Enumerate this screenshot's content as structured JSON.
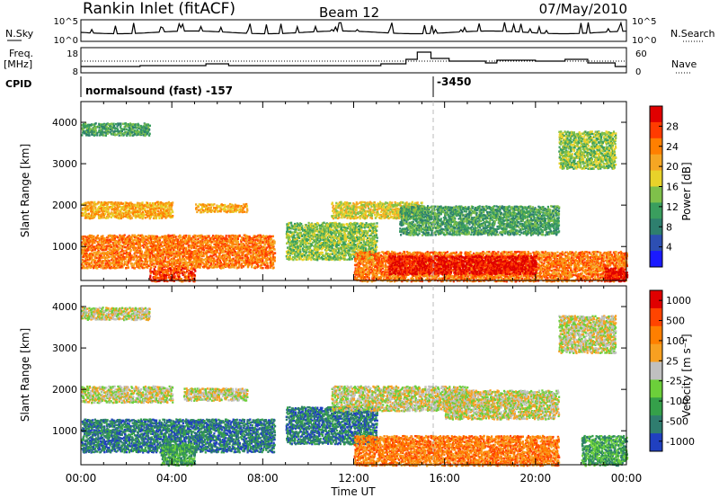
{
  "header": {
    "station": "Rankin Inlet (fitACF)",
    "beam": "Beam 12",
    "date": "07/May/2010"
  },
  "nsky_panel": {
    "left_label": "N.Sky",
    "left_ticks": [
      "10^5",
      "10^0"
    ],
    "right_ticks": [
      "10^5",
      "10^0"
    ],
    "right_label": "N.Search"
  },
  "freq_panel": {
    "left_label_1": "Freq.",
    "left_label_2": "[MHz]",
    "left_ticks": [
      "18",
      "8"
    ],
    "right_ticks": [
      "60",
      "0"
    ],
    "right_label": "Nave"
  },
  "cpid": {
    "label": "CPID",
    "mode_1": "normalsound (fast) -157",
    "mode_2": "-3450",
    "switch_hour": 15.5
  },
  "chart_data": [
    {
      "type": "heatmap",
      "title": "",
      "quantity": "Power",
      "ylabel": "Slant Range [km]",
      "xlabel": "",
      "xlim": [
        0,
        24
      ],
      "ylim": [
        180,
        4500
      ],
      "yticks": [
        "1000",
        "2000",
        "3000",
        "4000"
      ],
      "colorbar": {
        "label": "Power [dB]",
        "ticks": [
          "4",
          "8",
          "12",
          "16",
          "20",
          "24",
          "28"
        ],
        "colors": [
          "#1a1aff",
          "#2d4fb3",
          "#2e7f6e",
          "#3a9e5e",
          "#7fc04a",
          "#e8d22a",
          "#f5a623",
          "#ff7f00",
          "#ff3b00",
          "#e00000"
        ]
      },
      "scatter_bands": [
        {
          "x0": 0.0,
          "x1": 4.0,
          "y0": 1700,
          "y1": 2100,
          "level": 6
        },
        {
          "x0": 0.0,
          "x1": 8.5,
          "y0": 500,
          "y1": 1300,
          "level": 7
        },
        {
          "x0": 5.0,
          "x1": 7.3,
          "y0": 1850,
          "y1": 2050,
          "level": 6
        },
        {
          "x0": 3.0,
          "x1": 5.0,
          "y0": 180,
          "y1": 500,
          "level": 8
        },
        {
          "x0": 9.0,
          "x1": 13.0,
          "y0": 700,
          "y1": 1600,
          "level": 4
        },
        {
          "x0": 12.0,
          "x1": 24.0,
          "y0": 180,
          "y1": 900,
          "level": 7
        },
        {
          "x0": 13.5,
          "x1": 20.0,
          "y0": 350,
          "y1": 800,
          "level": 9
        },
        {
          "x0": 11.0,
          "x1": 15.0,
          "y0": 1700,
          "y1": 2100,
          "level": 5
        },
        {
          "x0": 14.0,
          "x1": 21.0,
          "y0": 1300,
          "y1": 2000,
          "level": 3
        },
        {
          "x0": 0.0,
          "x1": 3.0,
          "y0": 3700,
          "y1": 4000,
          "level": 3
        },
        {
          "x0": 21.0,
          "x1": 23.5,
          "y0": 2900,
          "y1": 3800,
          "level": 4
        },
        {
          "x0": 23.0,
          "x1": 24.0,
          "y0": 180,
          "y1": 500,
          "level": 9
        }
      ]
    },
    {
      "type": "heatmap",
      "title": "",
      "quantity": "Velocity",
      "ylabel": "Slant Range [km]",
      "xlabel": "Time UT",
      "xlim": [
        0,
        24
      ],
      "ylim": [
        180,
        4500
      ],
      "yticks": [
        "1000",
        "2000",
        "3000",
        "4000"
      ],
      "xticks": [
        "00:00",
        "04:00",
        "08:00",
        "12:00",
        "16:00",
        "20:00",
        "00:00"
      ],
      "colorbar": {
        "label": "Velocity [m s⁻¹]",
        "ticks": [
          "1000",
          "500",
          "100",
          "25",
          "-25",
          "-100",
          "-500",
          "-1000"
        ],
        "colors": [
          "#2040c0",
          "#2f7d6f",
          "#35a04a",
          "#6ccf3a",
          "#c0c0c0",
          "#f7a021",
          "#ff7f00",
          "#ff4400",
          "#e00000"
        ]
      },
      "scatter_bands": [
        {
          "x0": 0.0,
          "x1": 4.0,
          "y0": 1700,
          "y1": 2100,
          "level": 4
        },
        {
          "x0": 0.0,
          "x1": 8.5,
          "y0": 500,
          "y1": 1300,
          "level": 1
        },
        {
          "x0": 4.5,
          "x1": 7.3,
          "y0": 1750,
          "y1": 2050,
          "level": 4
        },
        {
          "x0": 9.0,
          "x1": 13.0,
          "y0": 700,
          "y1": 1600,
          "level": 1
        },
        {
          "x0": 12.0,
          "x1": 21.0,
          "y0": 180,
          "y1": 900,
          "level": 6
        },
        {
          "x0": 11.0,
          "x1": 17.0,
          "y0": 1500,
          "y1": 2100,
          "level": 4
        },
        {
          "x0": 16.0,
          "x1": 21.0,
          "y0": 1300,
          "y1": 2000,
          "level": 4
        },
        {
          "x0": 0.0,
          "x1": 3.0,
          "y0": 3700,
          "y1": 4000,
          "level": 4
        },
        {
          "x0": 21.0,
          "x1": 23.5,
          "y0": 2900,
          "y1": 3800,
          "level": 4
        },
        {
          "x0": 22.0,
          "x1": 24.0,
          "y0": 180,
          "y1": 900,
          "level": 2
        },
        {
          "x0": 3.5,
          "x1": 5.0,
          "y0": 180,
          "y1": 700,
          "level": 2
        }
      ]
    }
  ]
}
